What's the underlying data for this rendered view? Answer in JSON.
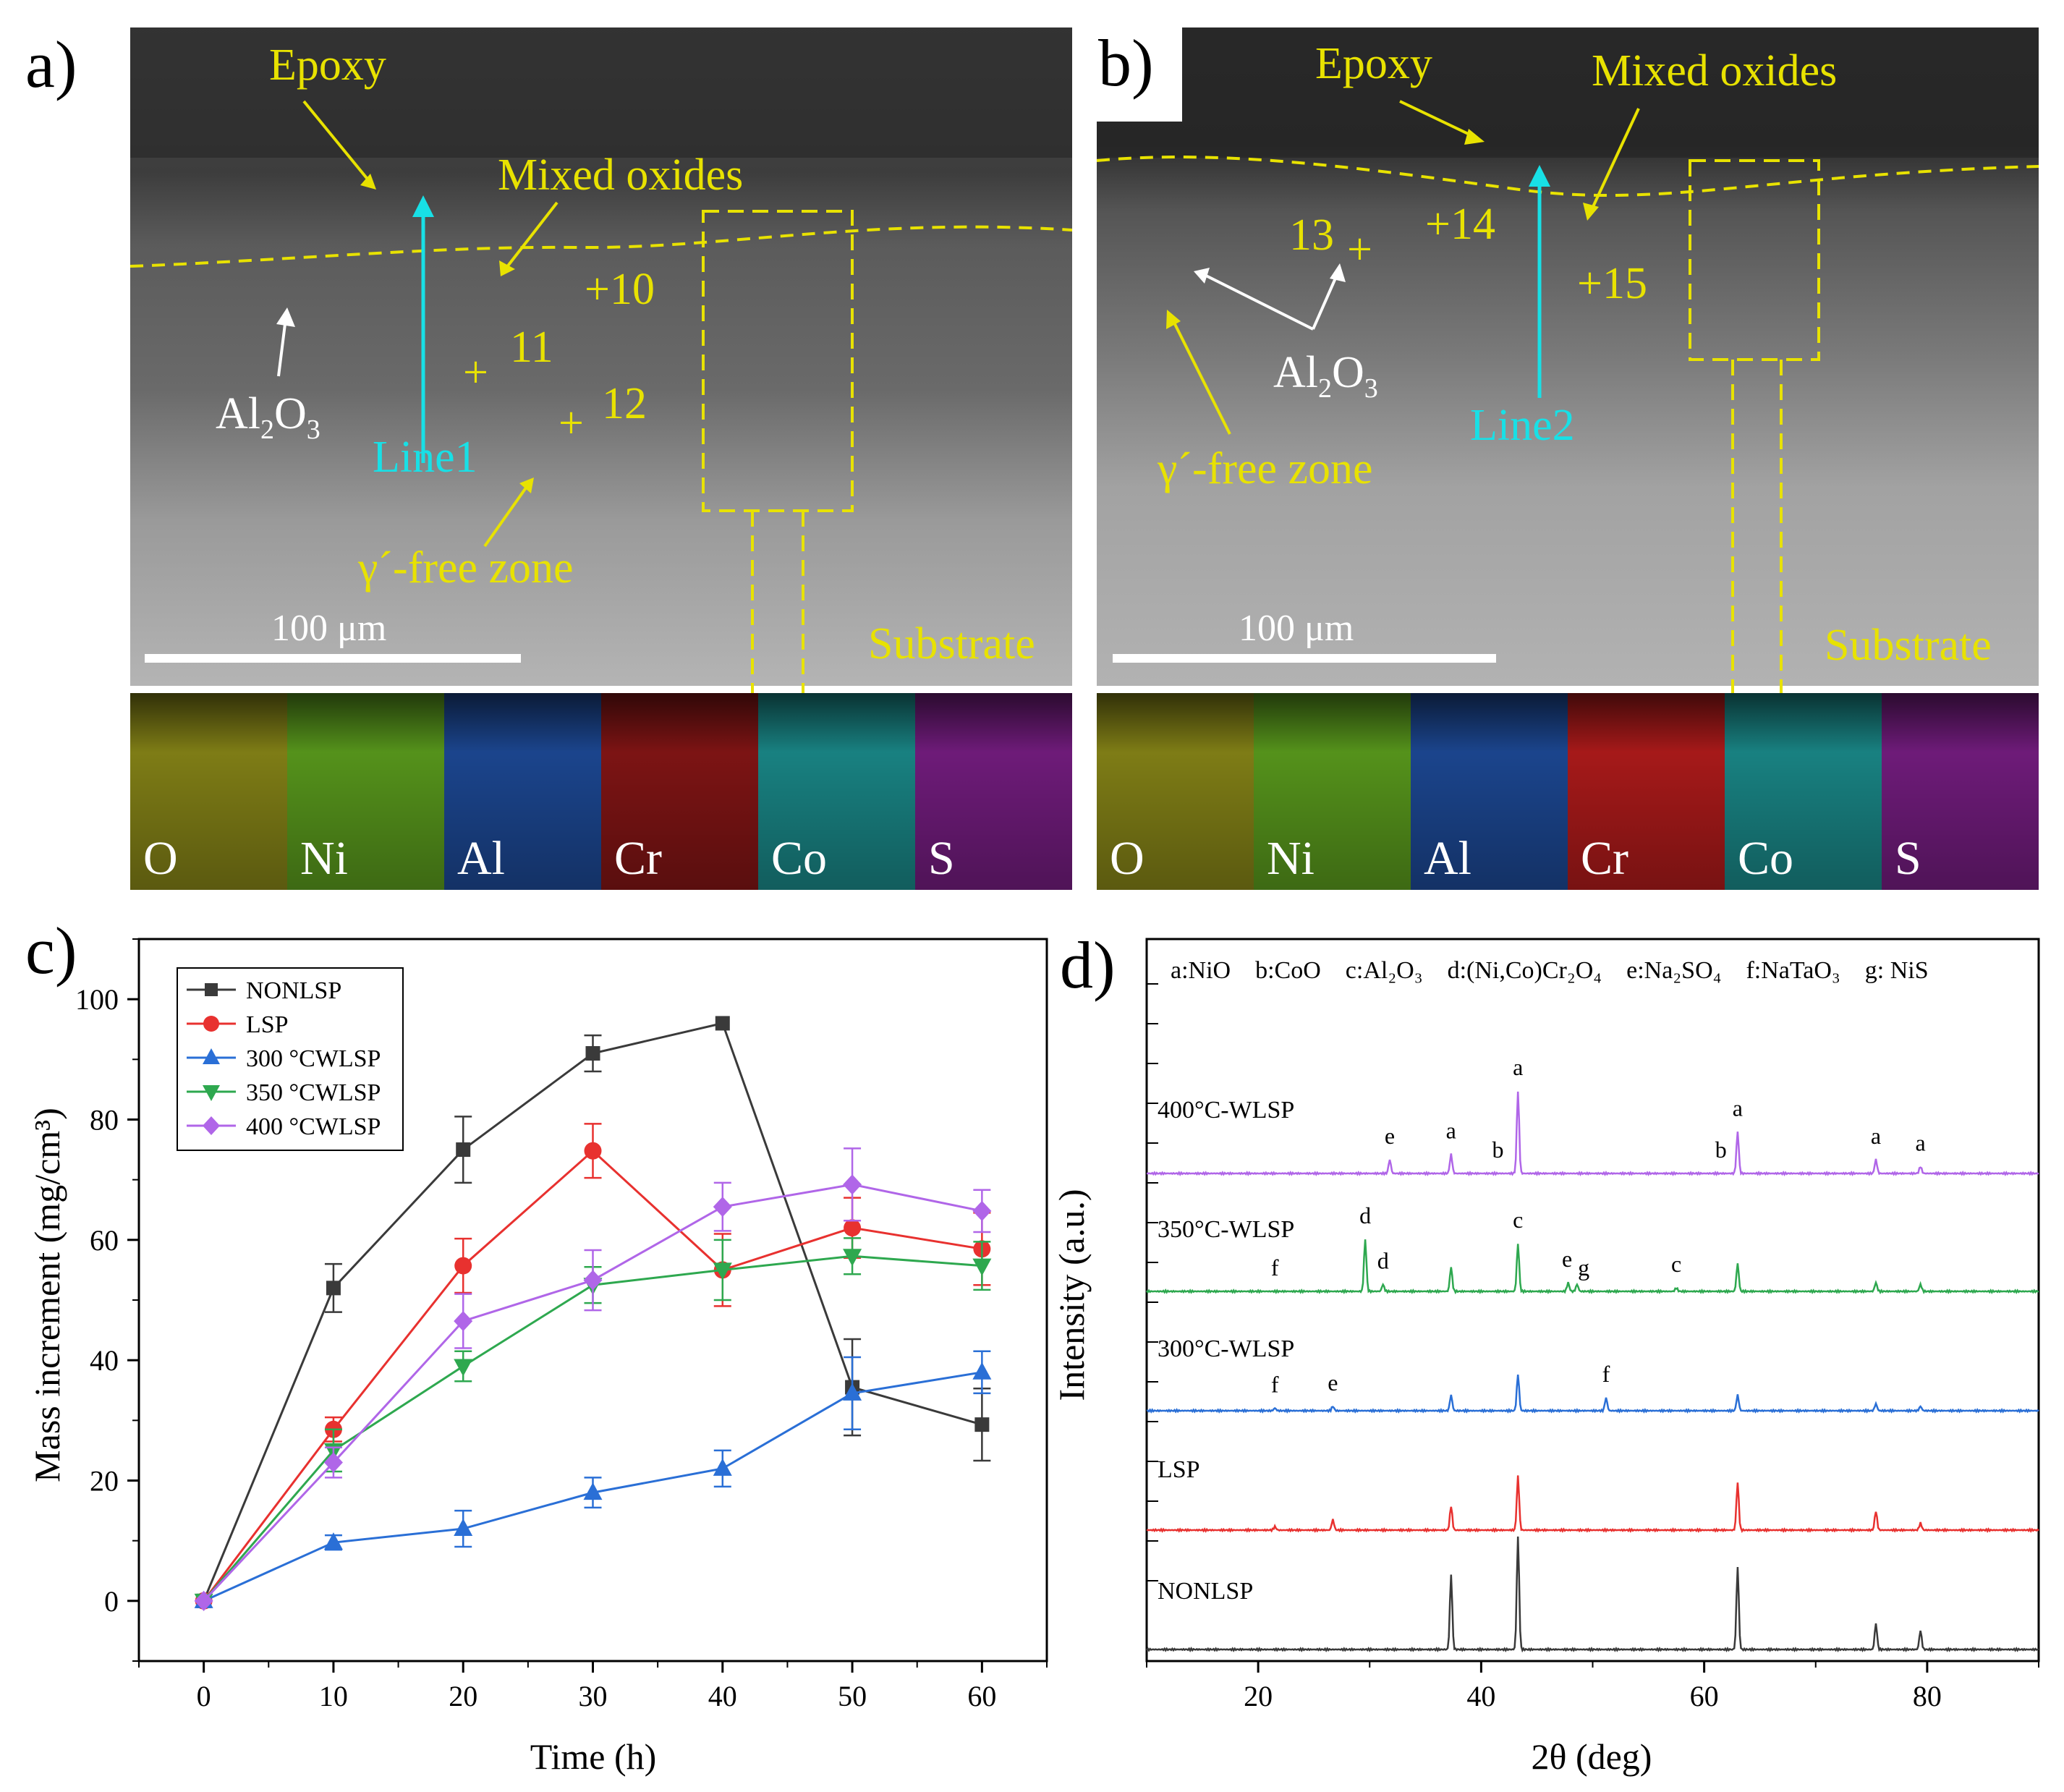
{
  "panel_a": {
    "label": "a)",
    "annotations": {
      "epoxy": "Epoxy",
      "mixed_oxides": "Mixed oxides",
      "al2o3_main": "Al",
      "al2o3_sub": "2",
      "al2o3_tail": "O",
      "al2o3_sub2": "3",
      "line": "Line1",
      "gamma_free": "γ´-free zone",
      "substrate": "Substrate",
      "scale_bar": "100 μm"
    },
    "points": [
      "+10",
      "+",
      "11",
      "+",
      "12"
    ],
    "eds_maps": [
      {
        "element": "O",
        "color": "#8c8a18"
      },
      {
        "element": "Ni",
        "color": "#5ea21e"
      },
      {
        "element": "Al",
        "color": "#1e4c9c"
      },
      {
        "element": "Cr",
        "color": "#8a1616"
      },
      {
        "element": "Co",
        "color": "#1b8f8f"
      },
      {
        "element": "S",
        "color": "#7a1e86"
      }
    ]
  },
  "panel_b": {
    "label": "b)",
    "annotations": {
      "epoxy": "Epoxy",
      "mixed_oxides": "Mixed oxides",
      "al2o3_main": "Al",
      "al2o3_sub": "2",
      "al2o3_tail": "O",
      "al2o3_sub2": "3",
      "line": "Line2",
      "gamma_free": "γ´-free zone",
      "substrate": "Substrate",
      "scale_bar": "100 μm"
    },
    "points": [
      "13",
      "+",
      "+14",
      "+15"
    ],
    "eds_maps": [
      {
        "element": "O",
        "color": "#8c8a18"
      },
      {
        "element": "Ni",
        "color": "#5ea21e"
      },
      {
        "element": "Al",
        "color": "#1e4c9c"
      },
      {
        "element": "Cr",
        "color": "#b81c1c"
      },
      {
        "element": "Co",
        "color": "#1b8f8f"
      },
      {
        "element": "S",
        "color": "#7a1e86"
      }
    ]
  },
  "chart_data": [
    {
      "panel": "c)",
      "type": "line",
      "xlabel": "Time (h)",
      "ylabel": "Mass increment (mg/cm³)",
      "xlim": [
        -5,
        65
      ],
      "ylim": [
        -10,
        110
      ],
      "xticks": [
        0,
        10,
        20,
        30,
        40,
        50,
        60
      ],
      "yticks": [
        0,
        20,
        40,
        60,
        80,
        100
      ],
      "x": [
        0,
        10,
        20,
        30,
        40,
        50,
        60
      ],
      "legend_position": "top-left",
      "series": [
        {
          "name": "NONLSP",
          "color": "#3a3a3a",
          "marker": "square",
          "values": [
            0,
            52,
            75,
            91,
            96,
            35.5,
            29.3
          ],
          "errors": [
            0,
            4,
            5.5,
            3,
            0,
            8,
            6
          ]
        },
        {
          "name": "LSP",
          "color": "#e8312f",
          "marker": "circle",
          "values": [
            0,
            28.5,
            55.7,
            74.8,
            55,
            62,
            58.5
          ],
          "errors": [
            0,
            2,
            4.5,
            4.5,
            6,
            5,
            6
          ]
        },
        {
          "name": "300 °CWLSP",
          "color": "#2a6fd6",
          "marker": "triangle-up",
          "values": [
            0,
            9.7,
            12,
            18,
            22,
            34.5,
            38
          ],
          "errors": [
            0,
            1.2,
            3,
            2.5,
            3,
            6,
            3.5
          ]
        },
        {
          "name": "350 °CWLSP",
          "color": "#2ea84f",
          "marker": "triangle-down",
          "values": [
            0,
            25,
            39,
            52.5,
            55,
            57.3,
            55.7
          ],
          "errors": [
            0,
            3.5,
            2.5,
            3,
            5,
            3,
            4
          ]
        },
        {
          "name": "400 °CWLSP",
          "color": "#b066e8",
          "marker": "diamond",
          "values": [
            0,
            23,
            46.5,
            53.3,
            65.5,
            69.2,
            64.8
          ],
          "errors": [
            0,
            2.5,
            4.5,
            5,
            4,
            6,
            3.5
          ]
        }
      ]
    },
    {
      "panel": "d)",
      "type": "line",
      "xlabel": "2θ (deg)",
      "ylabel": "Intensity (a.u.)",
      "xlim": [
        10,
        90
      ],
      "xticks": [
        20,
        40,
        60,
        80
      ],
      "phase_legend": [
        "a:NiO",
        "b:CoO",
        "c:Al₂O₃",
        "d:(Ni,Co)Cr₂O₄",
        "e:Na₂SO₄",
        "f:NaTaO₃",
        "g: NiS"
      ],
      "series": [
        {
          "name": "400°C-WLSP",
          "color": "#b066e8",
          "peaks": [
            [
              31.8,
              0.16
            ],
            [
              37.3,
              0.22
            ],
            [
              43.3,
              0.95
            ],
            [
              63.0,
              0.48
            ],
            [
              75.4,
              0.16
            ],
            [
              79.4,
              0.08
            ]
          ],
          "labels": [
            {
              "t": "e",
              "x": 31.8
            },
            {
              "t": "a",
              "x": 37.3
            },
            {
              "t": "b",
              "x": 41.5
            },
            {
              "t": "a",
              "x": 43.3
            },
            {
              "t": "b",
              "x": 61.5
            },
            {
              "t": "a",
              "x": 63.0
            },
            {
              "t": "a",
              "x": 75.4
            },
            {
              "t": "a",
              "x": 79.4
            }
          ]
        },
        {
          "name": "350°C-WLSP",
          "color": "#2ea84f",
          "peaks": [
            [
              29.6,
              0.6
            ],
            [
              31.2,
              0.08
            ],
            [
              37.3,
              0.28
            ],
            [
              43.3,
              0.55
            ],
            [
              47.8,
              0.1
            ],
            [
              48.6,
              0.08
            ],
            [
              57.5,
              0.04
            ],
            [
              63.0,
              0.32
            ],
            [
              75.4,
              0.1
            ],
            [
              79.4,
              0.08
            ]
          ],
          "labels": [
            {
              "t": "f",
              "x": 21.5
            },
            {
              "t": "d",
              "x": 29.6
            },
            {
              "t": "d",
              "x": 31.2
            },
            {
              "t": "c",
              "x": 43.3
            },
            {
              "t": "e",
              "x": 47.7
            },
            {
              "t": "g",
              "x": 49.2
            },
            {
              "t": "c",
              "x": 57.5
            }
          ]
        },
        {
          "name": "300°C-WLSP",
          "color": "#2a6fd6",
          "peaks": [
            [
              21.5,
              0.03
            ],
            [
              26.7,
              0.05
            ],
            [
              37.3,
              0.18
            ],
            [
              43.3,
              0.42
            ],
            [
              51.2,
              0.15
            ],
            [
              63.0,
              0.18
            ],
            [
              75.4,
              0.08
            ],
            [
              79.4,
              0.05
            ]
          ],
          "labels": [
            {
              "t": "f",
              "x": 21.5
            },
            {
              "t": "e",
              "x": 26.7
            },
            {
              "t": "f",
              "x": 51.2
            }
          ]
        },
        {
          "name": "LSP",
          "color": "#e8312f",
          "peaks": [
            [
              21.5,
              0.04
            ],
            [
              26.7,
              0.12
            ],
            [
              37.3,
              0.28
            ],
            [
              43.3,
              0.62
            ],
            [
              63.0,
              0.55
            ],
            [
              75.4,
              0.22
            ],
            [
              79.4,
              0.08
            ]
          ],
          "labels": []
        },
        {
          "name": "NONLSP",
          "color": "#3a3a3a",
          "peaks": [
            [
              37.3,
              0.86
            ],
            [
              43.3,
              1.3
            ],
            [
              63.0,
              0.95
            ],
            [
              75.4,
              0.3
            ],
            [
              79.4,
              0.22
            ]
          ],
          "labels": []
        }
      ]
    }
  ]
}
